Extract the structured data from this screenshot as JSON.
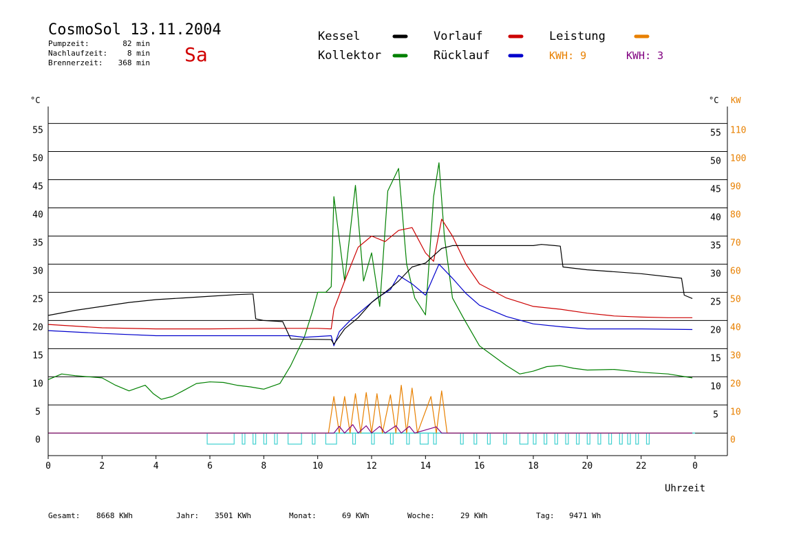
{
  "header": {
    "title": "CosmoSol 13.11.2004",
    "day": "Sa",
    "pump_label": "Pumpzeit:",
    "pump_value": "82 min",
    "nach_label": "Nachlaufzeit:",
    "nach_value": "8 min",
    "brenner_label": "Brennerzeit:",
    "brenner_value": "368 min"
  },
  "legend": {
    "kessel": "Kessel",
    "kollektor": "Kollektor",
    "vorlauf": "Vorlauf",
    "ruecklauf": "Rücklauf",
    "leistung": "Leistung",
    "kwh1": "KWH: 9",
    "kwh2": "KWH: 3"
  },
  "colors": {
    "kessel": "#000000",
    "kollektor": "#008000",
    "vorlauf": "#cc0000",
    "ruecklauf": "#0000cc",
    "leistung": "#e88000",
    "kwh2": "#800080",
    "pump": "#40d0d0"
  },
  "axis": {
    "left_unit": "°C",
    "right_unit": "°C",
    "right_unit2": "KW",
    "x_label": "Uhrzeit"
  },
  "footer": {
    "gesamt_label": "Gesamt:",
    "gesamt_value": "8668 KWh",
    "jahr_label": "Jahr:",
    "jahr_value": "3501 KWh",
    "monat_label": "Monat:",
    "monat_value": "69 KWh",
    "woche_label": "Woche:",
    "woche_value": "29 KWh",
    "tag_label": "Tag:",
    "tag_value": "9471 Wh"
  },
  "chart_data": {
    "type": "line",
    "x_ticks": [
      "0",
      "2",
      "4",
      "6",
      "8",
      "10",
      "12",
      "14",
      "16",
      "18",
      "20",
      "22",
      "0"
    ],
    "y_ticks_left": [
      "0",
      "5",
      "10",
      "15",
      "20",
      "25",
      "30",
      "35",
      "40",
      "45",
      "50",
      "55"
    ],
    "y_ticks_right_c": [
      "5",
      "10",
      "15",
      "20",
      "25",
      "30",
      "35",
      "40",
      "45",
      "50",
      "55"
    ],
    "y_ticks_right_kw": [
      "0",
      "10",
      "20",
      "30",
      "40",
      "50",
      "60",
      "70",
      "80",
      "90",
      "100",
      "110"
    ],
    "xlim": [
      0,
      24
    ],
    "ylim_c": [
      -4,
      58
    ],
    "ylim_kw": [
      -8,
      116
    ],
    "grid": true,
    "series": [
      {
        "name": "Kessel",
        "key": "kessel",
        "points": [
          [
            0,
            20.9
          ],
          [
            1,
            21.8
          ],
          [
            2,
            22.5
          ],
          [
            3,
            23.2
          ],
          [
            4,
            23.7
          ],
          [
            5,
            24.0
          ],
          [
            6,
            24.3
          ],
          [
            7,
            24.6
          ],
          [
            7.6,
            24.7
          ],
          [
            7.7,
            20.3
          ],
          [
            8,
            20.0
          ],
          [
            8.7,
            19.8
          ],
          [
            9.0,
            16.7
          ],
          [
            10.5,
            16.6
          ],
          [
            10.6,
            15.8
          ],
          [
            11,
            18.5
          ],
          [
            11.5,
            20.5
          ],
          [
            12,
            23.2
          ],
          [
            12.5,
            25.0
          ],
          [
            13,
            27.0
          ],
          [
            13.5,
            29.5
          ],
          [
            14,
            30.2
          ],
          [
            14.3,
            31.5
          ],
          [
            14.6,
            32.8
          ],
          [
            15,
            33.3
          ],
          [
            18,
            33.3
          ],
          [
            18.3,
            33.5
          ],
          [
            18.8,
            33.3
          ],
          [
            19.0,
            33.2
          ],
          [
            19.1,
            29.5
          ],
          [
            20,
            29.0
          ],
          [
            22,
            28.3
          ],
          [
            23.5,
            27.5
          ],
          [
            23.6,
            24.5
          ],
          [
            23.9,
            23.9
          ]
        ]
      },
      {
        "name": "Vorlauf",
        "key": "vorlauf",
        "points": [
          [
            0,
            19.3
          ],
          [
            2,
            18.7
          ],
          [
            4,
            18.5
          ],
          [
            6,
            18.5
          ],
          [
            8,
            18.6
          ],
          [
            10,
            18.6
          ],
          [
            10.5,
            18.5
          ],
          [
            10.6,
            22.0
          ],
          [
            11,
            27.0
          ],
          [
            11.5,
            33.0
          ],
          [
            12,
            35.0
          ],
          [
            12.5,
            34.0
          ],
          [
            13,
            36.0
          ],
          [
            13.5,
            36.5
          ],
          [
            14,
            32.0
          ],
          [
            14.3,
            30.5
          ],
          [
            14.6,
            38.0
          ],
          [
            15,
            35.0
          ],
          [
            15.5,
            30.0
          ],
          [
            16,
            26.5
          ],
          [
            17,
            24.0
          ],
          [
            18,
            22.5
          ],
          [
            19,
            22.0
          ],
          [
            20,
            21.3
          ],
          [
            21,
            20.8
          ],
          [
            22,
            20.6
          ],
          [
            23,
            20.5
          ],
          [
            23.9,
            20.5
          ]
        ]
      },
      {
        "name": "Rücklauf",
        "key": "ruecklauf",
        "points": [
          [
            0,
            18.2
          ],
          [
            2,
            17.7
          ],
          [
            4,
            17.3
          ],
          [
            6,
            17.3
          ],
          [
            8,
            17.3
          ],
          [
            9,
            17.3
          ],
          [
            9.5,
            17.0
          ],
          [
            10.5,
            17.3
          ],
          [
            10.6,
            15.5
          ],
          [
            10.8,
            18.0
          ],
          [
            11.2,
            20.0
          ],
          [
            11.7,
            22.0
          ],
          [
            12.2,
            24.0
          ],
          [
            12.7,
            25.5
          ],
          [
            13,
            28.0
          ],
          [
            13.5,
            26.5
          ],
          [
            14,
            24.5
          ],
          [
            14.5,
            30.0
          ],
          [
            15,
            27.5
          ],
          [
            15.5,
            24.8
          ],
          [
            16,
            22.7
          ],
          [
            17,
            20.7
          ],
          [
            18,
            19.4
          ],
          [
            19,
            18.9
          ],
          [
            20,
            18.5
          ],
          [
            22,
            18.5
          ],
          [
            23.9,
            18.4
          ]
        ]
      },
      {
        "name": "Kollektor",
        "key": "kollektor",
        "points": [
          [
            0,
            9.5
          ],
          [
            0.5,
            10.5
          ],
          [
            1,
            10.2
          ],
          [
            1.5,
            10.0
          ],
          [
            2,
            9.8
          ],
          [
            2.5,
            8.5
          ],
          [
            3,
            7.5
          ],
          [
            3.3,
            8.0
          ],
          [
            3.6,
            8.5
          ],
          [
            3.9,
            7.0
          ],
          [
            4.2,
            6.0
          ],
          [
            4.6,
            6.5
          ],
          [
            5,
            7.5
          ],
          [
            5.5,
            8.8
          ],
          [
            6,
            9.1
          ],
          [
            6.5,
            9.0
          ],
          [
            7,
            8.5
          ],
          [
            7.5,
            8.2
          ],
          [
            8,
            7.8
          ],
          [
            8.6,
            8.8
          ],
          [
            9,
            12.0
          ],
          [
            9.5,
            17.0
          ],
          [
            9.8,
            21.5
          ],
          [
            10,
            25.0
          ],
          [
            10.3,
            25.0
          ],
          [
            10.5,
            26.0
          ],
          [
            10.6,
            42.0
          ],
          [
            11,
            27.0
          ],
          [
            11.4,
            44.0
          ],
          [
            11.7,
            27.0
          ],
          [
            12,
            32.0
          ],
          [
            12.3,
            22.5
          ],
          [
            12.6,
            43.0
          ],
          [
            13,
            47.0
          ],
          [
            13.3,
            30.0
          ],
          [
            13.6,
            24.0
          ],
          [
            14,
            21.0
          ],
          [
            14.3,
            42.0
          ],
          [
            14.5,
            48.0
          ],
          [
            14.7,
            35.0
          ],
          [
            15,
            24.0
          ],
          [
            15.4,
            20.5
          ],
          [
            16,
            15.5
          ],
          [
            17,
            12.0
          ],
          [
            17.5,
            10.5
          ],
          [
            18,
            11.0
          ],
          [
            18.5,
            11.8
          ],
          [
            19,
            12.0
          ],
          [
            19.5,
            11.5
          ],
          [
            20,
            11.2
          ],
          [
            21,
            11.3
          ],
          [
            22,
            10.8
          ],
          [
            23,
            10.5
          ],
          [
            23.9,
            9.8
          ]
        ]
      },
      {
        "name": "Leistung",
        "key": "leistung",
        "points": [
          [
            0,
            0
          ],
          [
            10.4,
            0
          ],
          [
            10.6,
            6.5
          ],
          [
            10.8,
            0
          ],
          [
            11,
            6.5
          ],
          [
            11.2,
            0
          ],
          [
            11.4,
            7.0
          ],
          [
            11.6,
            0
          ],
          [
            11.8,
            7.2
          ],
          [
            12,
            0
          ],
          [
            12.2,
            7.0
          ],
          [
            12.4,
            0
          ],
          [
            12.7,
            6.8
          ],
          [
            12.9,
            0
          ],
          [
            13.1,
            8.5
          ],
          [
            13.3,
            0
          ],
          [
            13.5,
            8.0
          ],
          [
            13.7,
            0
          ],
          [
            14.2,
            6.5
          ],
          [
            14.4,
            0
          ],
          [
            14.6,
            7.5
          ],
          [
            14.8,
            0
          ],
          [
            23.9,
            0
          ]
        ]
      },
      {
        "name": "KWH2",
        "key": "kwh2",
        "points": [
          [
            0,
            0
          ],
          [
            10.6,
            0
          ],
          [
            10.8,
            1.2
          ],
          [
            11.0,
            0
          ],
          [
            11.3,
            1.5
          ],
          [
            11.5,
            0
          ],
          [
            11.8,
            1.3
          ],
          [
            12.0,
            0
          ],
          [
            12.3,
            1.2
          ],
          [
            12.5,
            0
          ],
          [
            12.9,
            1.3
          ],
          [
            13.1,
            0
          ],
          [
            13.4,
            1.2
          ],
          [
            13.6,
            0
          ],
          [
            14.4,
            1.1
          ],
          [
            14.6,
            0
          ],
          [
            23.9,
            0
          ]
        ]
      }
    ],
    "pump_intervals": [
      [
        5.9,
        6.9
      ],
      [
        7.2,
        7.3
      ],
      [
        7.6,
        7.7
      ],
      [
        8.0,
        8.1
      ],
      [
        8.4,
        8.5
      ],
      [
        8.9,
        9.4
      ],
      [
        9.8,
        9.9
      ],
      [
        10.3,
        10.7
      ],
      [
        11.3,
        11.4
      ],
      [
        12.0,
        12.1
      ],
      [
        12.7,
        12.8
      ],
      [
        13.3,
        13.4
      ],
      [
        13.8,
        14.1
      ],
      [
        14.3,
        14.4
      ],
      [
        15.3,
        15.4
      ],
      [
        15.8,
        15.9
      ],
      [
        16.3,
        16.4
      ],
      [
        16.9,
        17.0
      ],
      [
        17.5,
        17.8
      ],
      [
        18.0,
        18.1
      ],
      [
        18.4,
        18.5
      ],
      [
        18.8,
        18.9
      ],
      [
        19.2,
        19.3
      ],
      [
        19.6,
        19.7
      ],
      [
        20.0,
        20.1
      ],
      [
        20.4,
        20.5
      ],
      [
        20.8,
        20.9
      ],
      [
        21.2,
        21.3
      ],
      [
        21.5,
        21.6
      ],
      [
        21.8,
        21.9
      ],
      [
        22.2,
        22.3
      ]
    ]
  }
}
